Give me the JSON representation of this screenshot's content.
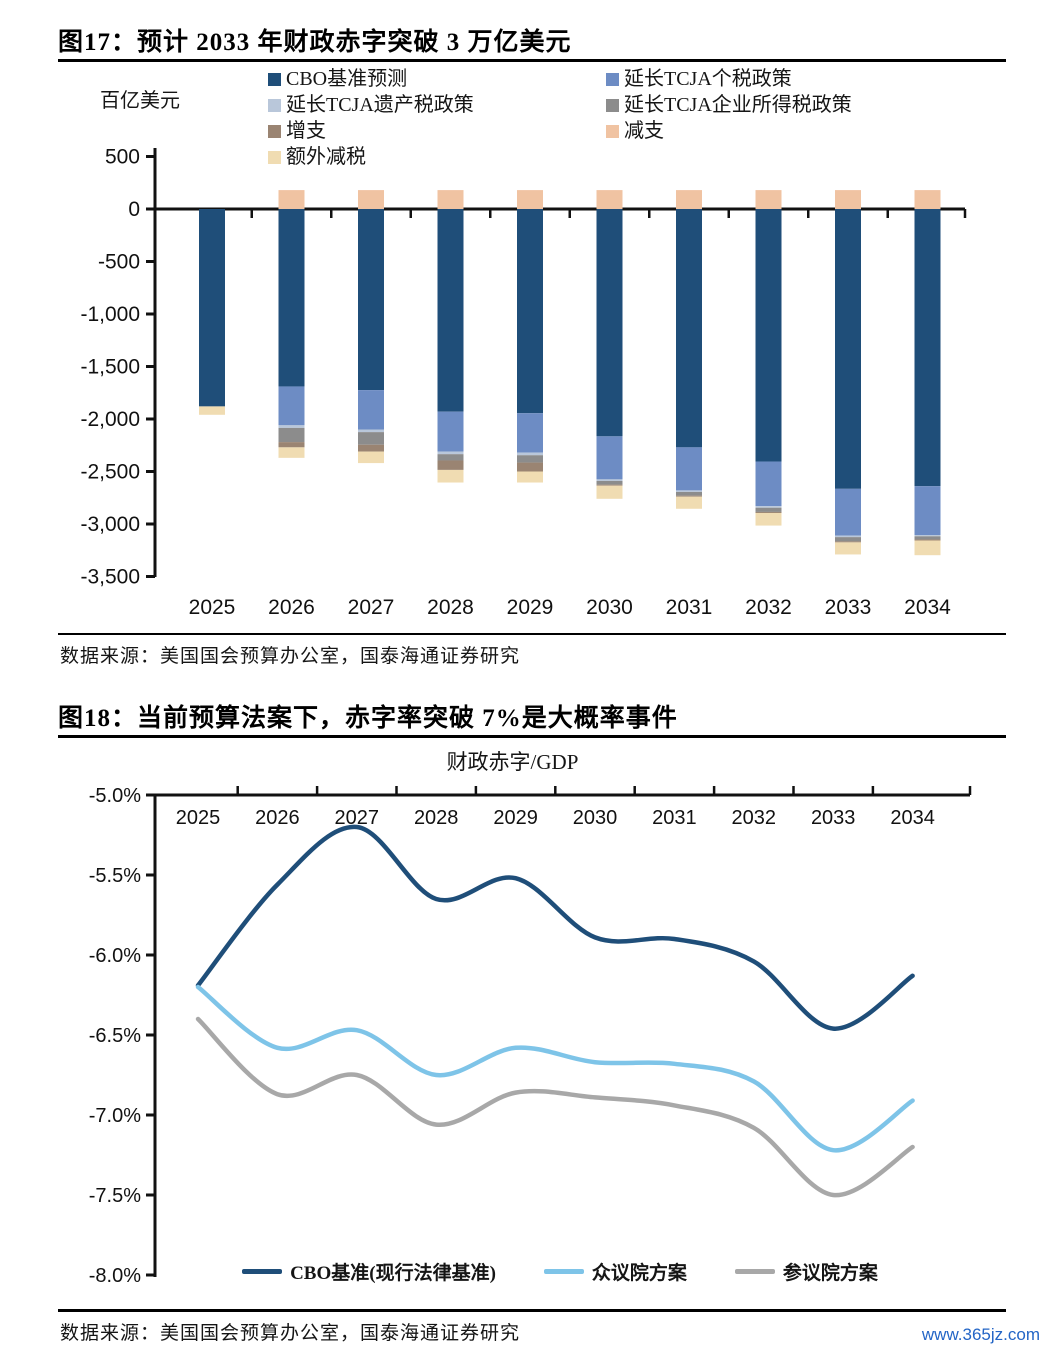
{
  "fig17": {
    "title": "图17：预计 2033 年财政赤字突破 3 万亿美元",
    "unit": "百亿美元",
    "source": "数据来源：美国国会预算办公室，国泰海通证券研究",
    "legend_col1": [
      {
        "label": "CBO基准预测",
        "color": "#1F4E79"
      },
      {
        "label": "延长TCJA遗产税政策",
        "color": "#B9C7DA"
      },
      {
        "label": "增支",
        "color": "#9A8472"
      },
      {
        "label": "额外减税",
        "color": "#F0DCB2"
      }
    ],
    "legend_col2": [
      {
        "label": "延长TCJA个税政策",
        "color": "#6D8CC4"
      },
      {
        "label": "延长TCJA企业所得税政策",
        "color": "#8C8C8C"
      },
      {
        "label": "减支",
        "color": "#F0C3A2"
      }
    ]
  },
  "fig18": {
    "title": "图18：当前预算法案下，赤字率突破 7%是大概率事件",
    "subtitle": "财政赤字/GDP",
    "source": "数据来源：美国国会预算办公室，国泰海通证券研究",
    "legend": [
      {
        "label": "CBO基准(现行法律基准)",
        "color": "#1F4E79"
      },
      {
        "label": "众议院方案",
        "color": "#7EC4E8"
      },
      {
        "label": "参议院方案",
        "color": "#A8A8A8"
      }
    ]
  },
  "watermark": "www.365jz.com",
  "chart_data": [
    {
      "type": "bar",
      "stacked": true,
      "title": "预计2033年财政赤字突破3万亿美元",
      "ylabel": "百亿美元",
      "xlabel": "",
      "ylim": [
        -3500,
        500
      ],
      "grid": false,
      "legend_position": "top",
      "categories": [
        "2025",
        "2026",
        "2027",
        "2028",
        "2029",
        "2030",
        "2031",
        "2032",
        "2033",
        "2034"
      ],
      "yticks": [
        {
          "label": "500",
          "value": 500
        },
        {
          "label": "0",
          "value": 0
        },
        {
          "label": "-500",
          "value": -500
        },
        {
          "label": "-1,000",
          "value": -1000
        },
        {
          "label": "-1,500",
          "value": -1500
        },
        {
          "label": "-2,000",
          "value": -2000
        },
        {
          "label": "-2,500",
          "value": -2500
        },
        {
          "label": "-3,000",
          "value": -3000
        },
        {
          "label": "-3,500",
          "value": -3500
        }
      ],
      "series": [
        {
          "name": "CBO基准预测",
          "color": "#1F4E79",
          "values": [
            -1880,
            -1690,
            -1725,
            -1930,
            -1945,
            -2165,
            -2270,
            -2405,
            -2665,
            -2640
          ]
        },
        {
          "name": "延长TCJA个税政策",
          "color": "#6D8CC4",
          "values": [
            0,
            -370,
            -375,
            -380,
            -375,
            -410,
            -410,
            -425,
            -445,
            -465
          ]
        },
        {
          "name": "延长TCJA遗产税政策",
          "color": "#B9C7DA",
          "values": [
            0,
            -25,
            -25,
            -25,
            -25,
            -15,
            -15,
            -15,
            -15,
            -12
          ]
        },
        {
          "name": "延长TCJA企业所得税政策",
          "color": "#8C8C8C",
          "values": [
            0,
            -135,
            -120,
            -60,
            -70,
            -35,
            -35,
            -40,
            -40,
            -30
          ]
        },
        {
          "name": "增支",
          "color": "#9A8472",
          "values": [
            0,
            -50,
            -65,
            -90,
            -85,
            -10,
            -10,
            -10,
            -10,
            -10
          ]
        },
        {
          "name": "减支",
          "color": "#F0C3A2",
          "values": [
            0,
            180,
            180,
            180,
            180,
            180,
            180,
            180,
            180,
            180
          ]
        },
        {
          "name": "额外减税",
          "color": "#F0DCB2",
          "values": [
            -80,
            -100,
            -110,
            -120,
            -105,
            -125,
            -115,
            -120,
            -115,
            -140
          ]
        }
      ]
    },
    {
      "type": "line",
      "title": "财政赤字/GDP",
      "unit": "%",
      "ylim": [
        -8.0,
        -5.0
      ],
      "grid": false,
      "legend_position": "bottom",
      "categories": [
        "2025",
        "2026",
        "2027",
        "2028",
        "2029",
        "2030",
        "2031",
        "2032",
        "2033",
        "2034"
      ],
      "yticks": [
        {
          "label": "-5.0%",
          "value": -5.0
        },
        {
          "label": "-5.5%",
          "value": -5.5
        },
        {
          "label": "-6.0%",
          "value": -6.0
        },
        {
          "label": "-6.5%",
          "value": -6.5
        },
        {
          "label": "-7.0%",
          "value": -7.0
        },
        {
          "label": "-7.5%",
          "value": -7.5
        },
        {
          "label": "-8.0%",
          "value": -8.0
        }
      ],
      "series": [
        {
          "name": "CBO基准(现行法律基准)",
          "color": "#1F4E79",
          "values": [
            -6.19,
            -5.56,
            -5.2,
            -5.65,
            -5.52,
            -5.89,
            -5.9,
            -6.04,
            -6.46,
            -6.13
          ]
        },
        {
          "name": "众议院方案",
          "color": "#7EC4E8",
          "values": [
            -6.2,
            -6.58,
            -6.47,
            -6.75,
            -6.58,
            -6.67,
            -6.68,
            -6.79,
            -7.22,
            -6.91
          ]
        },
        {
          "name": "参议院方案",
          "color": "#A8A8A8",
          "values": [
            -6.4,
            -6.87,
            -6.75,
            -7.06,
            -6.86,
            -6.89,
            -6.94,
            -7.08,
            -7.5,
            -7.2
          ]
        }
      ]
    }
  ]
}
